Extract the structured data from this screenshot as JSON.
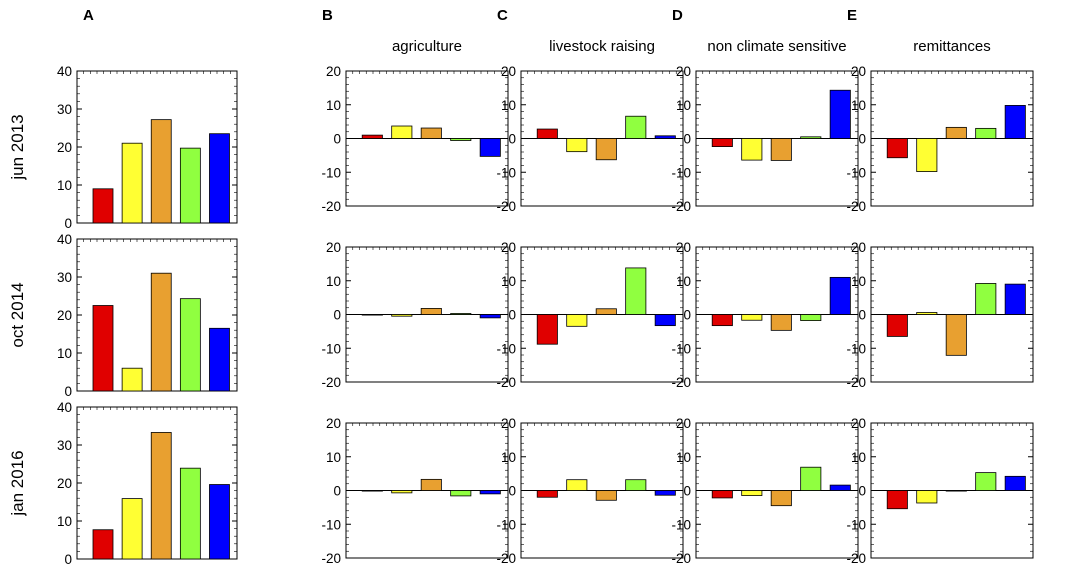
{
  "panel_letters": [
    "A",
    "B",
    "C",
    "D",
    "E"
  ],
  "colors": [
    "#e00000",
    "#ffff33",
    "#e8a030",
    "#90ff40",
    "#0000ff"
  ],
  "row_labels": [
    "jun 2013",
    "oct 2014",
    "jan 2016"
  ],
  "column_titles": [
    "",
    "agriculture",
    "livestock raising",
    "non climate sensitive",
    "remittances"
  ],
  "chart_data": [
    {
      "panel": "A",
      "type": "bar",
      "title": "",
      "ylim": [
        0,
        40
      ],
      "yticks": [
        0,
        10,
        20,
        30,
        40
      ],
      "rows": [
        {
          "label": "jun 2013",
          "values": [
            9,
            21,
            27.2,
            19.7,
            23.5
          ]
        },
        {
          "label": "oct 2014",
          "values": [
            22.5,
            6,
            31,
            24.3,
            16.5
          ]
        },
        {
          "label": "jan 2016",
          "values": [
            7.7,
            15.9,
            33.3,
            23.9,
            19.6
          ]
        }
      ]
    },
    {
      "panel": "B",
      "type": "bar",
      "title": "agriculture",
      "ylim": [
        -20,
        20
      ],
      "yticks": [
        -20,
        -10,
        0,
        10,
        20
      ],
      "rows": [
        {
          "label": "jun 2013",
          "values": [
            1,
            3.7,
            3.1,
            -0.6,
            -5.3
          ]
        },
        {
          "label": "oct 2014",
          "values": [
            0,
            -0.5,
            1.8,
            0.3,
            -1
          ]
        },
        {
          "label": "jan 2016",
          "values": [
            0,
            -0.7,
            3.3,
            -1.6,
            -1
          ]
        }
      ]
    },
    {
      "panel": "C",
      "type": "bar",
      "title": "livestock raising",
      "ylim": [
        -20,
        20
      ],
      "yticks": [
        -20,
        -10,
        0,
        10,
        20
      ],
      "rows": [
        {
          "label": "jun 2013",
          "values": [
            2.8,
            -3.9,
            -6.3,
            6.6,
            0.8
          ]
        },
        {
          "label": "oct 2014",
          "values": [
            -8.8,
            -3.5,
            1.7,
            13.8,
            -3.3
          ]
        },
        {
          "label": "jan 2016",
          "values": [
            -2,
            3.2,
            -2.9,
            3.2,
            -1.4
          ]
        }
      ]
    },
    {
      "panel": "D",
      "type": "bar",
      "title": "non climate sensitive",
      "ylim": [
        -20,
        20
      ],
      "yticks": [
        -20,
        -10,
        0,
        10,
        20
      ],
      "rows": [
        {
          "label": "jun 2013",
          "values": [
            -2.4,
            -6.4,
            -6.5,
            0.5,
            14.3
          ]
        },
        {
          "label": "oct 2014",
          "values": [
            -3.3,
            -1.7,
            -4.7,
            -1.8,
            11
          ]
        },
        {
          "label": "jan 2016",
          "values": [
            -2.2,
            -1.5,
            -4.5,
            6.9,
            1.6
          ]
        }
      ]
    },
    {
      "panel": "E",
      "type": "bar",
      "title": "remittances",
      "ylim": [
        -20,
        20
      ],
      "yticks": [
        -20,
        -10,
        0,
        10,
        20
      ],
      "rows": [
        {
          "label": "jun 2013",
          "values": [
            -5.7,
            -9.8,
            3.3,
            3,
            9.8
          ]
        },
        {
          "label": "oct 2014",
          "values": [
            -6.5,
            0.6,
            -12.1,
            9.2,
            9
          ]
        },
        {
          "label": "jan 2016",
          "values": [
            -5.4,
            -3.7,
            0,
            5.3,
            4.2
          ]
        }
      ]
    }
  ]
}
